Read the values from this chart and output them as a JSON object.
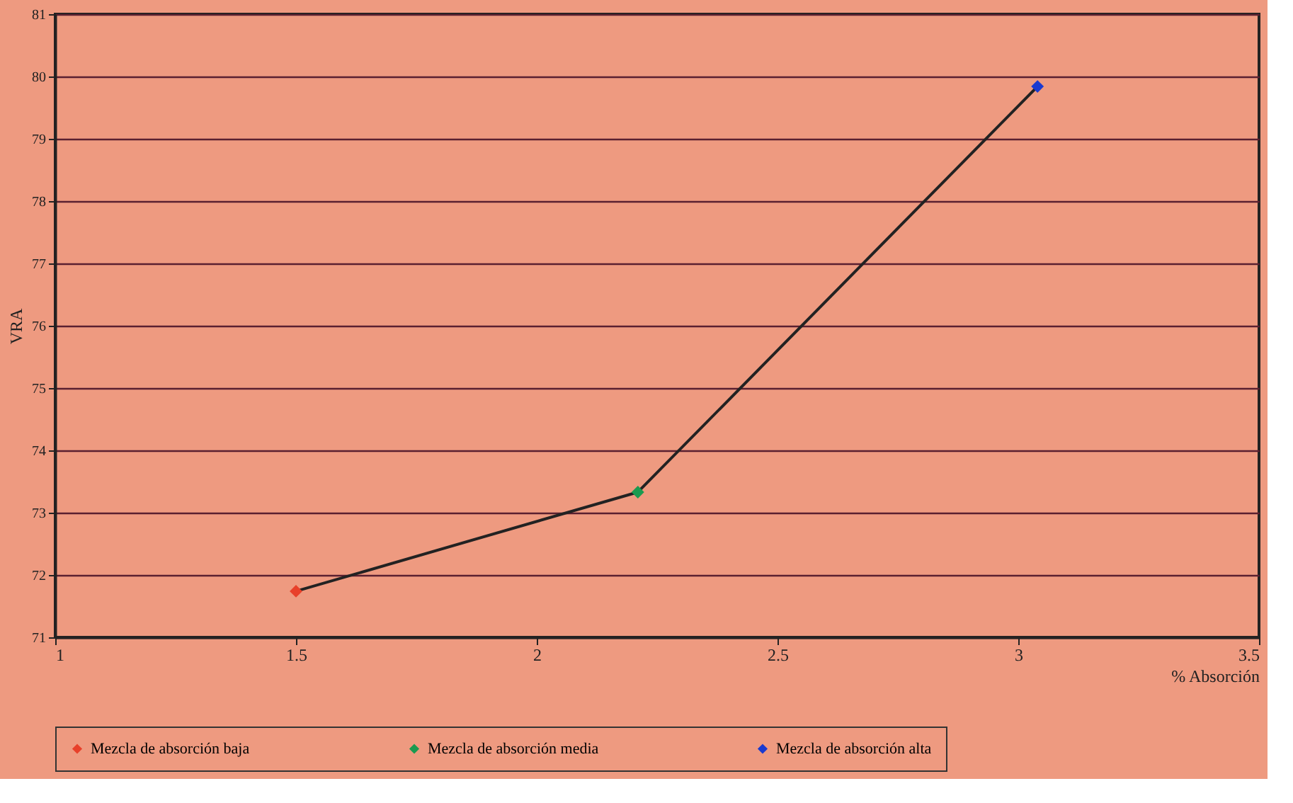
{
  "chart_data": {
    "type": "scatter",
    "xlabel": "% Absorción",
    "ylabel": "VRA",
    "xlim": [
      1,
      3.5
    ],
    "xticks": [
      1,
      1.5,
      2,
      2.5,
      3,
      3.5
    ],
    "ylim": [
      71,
      81
    ],
    "yticks": [
      71,
      72,
      73,
      74,
      75,
      76,
      77,
      78,
      79,
      80,
      81
    ],
    "grid": "y",
    "legend": "bottom",
    "series": [
      {
        "type": "line",
        "color": "#222222",
        "x": [
          1.5,
          2.21,
          3.04
        ],
        "values": [
          71.74,
          73.33,
          79.84
        ],
        "line_style": "solid"
      },
      {
        "name": "Mezcla de absorción baja",
        "color": "#e8402a",
        "marker": "diamond",
        "x": [
          1.5
        ],
        "values": [
          71.74
        ]
      },
      {
        "name": "Mezcla de absorción media",
        "color": "#1a9a50",
        "marker": "diamond",
        "x": [
          2.21
        ],
        "values": [
          73.33
        ]
      },
      {
        "name": "Mezcla de absorción alta",
        "color": "#1a3ad0",
        "marker": "diamond",
        "x": [
          3.04
        ],
        "values": [
          79.84
        ]
      }
    ]
  }
}
